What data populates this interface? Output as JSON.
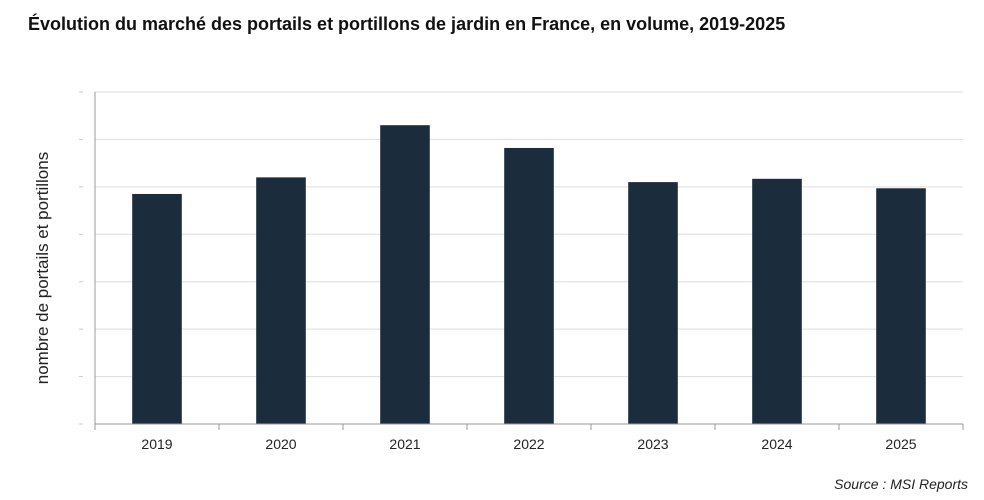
{
  "chart_data": {
    "type": "bar",
    "title": "Évolution du marché des portails et portillons de jardin en France, en volume, 2019-2025",
    "xlabel": "",
    "ylabel": "nombre de portails et portillons",
    "categories": [
      "2019",
      "2020",
      "2021",
      "2022",
      "2023",
      "2024",
      "2025"
    ],
    "values": [
      4.85,
      5.2,
      6.3,
      5.82,
      5.1,
      5.17,
      4.97
    ],
    "ylim": [
      0,
      7
    ],
    "ytick_values": [
      0,
      1,
      2,
      3,
      4,
      5,
      6,
      7
    ],
    "y_tick_labels_shown": false,
    "grid": true,
    "legend": "none",
    "bar_color": "#1b2d3c",
    "gridline_color": "#dddddd",
    "axis_color": "#999999",
    "source": "Source : MSI Reports"
  }
}
